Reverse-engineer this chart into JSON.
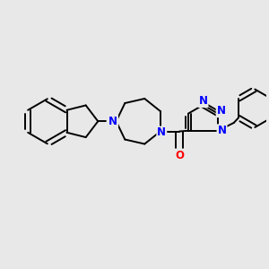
{
  "background_color": "#e8e8e8",
  "bond_color": "#000000",
  "n_color": "#0000ff",
  "o_color": "#ff0000",
  "bond_width": 1.4,
  "figsize": [
    3.0,
    3.0
  ],
  "dpi": 100,
  "xlim": [
    0.0,
    10.0
  ],
  "ylim": [
    0.0,
    10.0
  ]
}
